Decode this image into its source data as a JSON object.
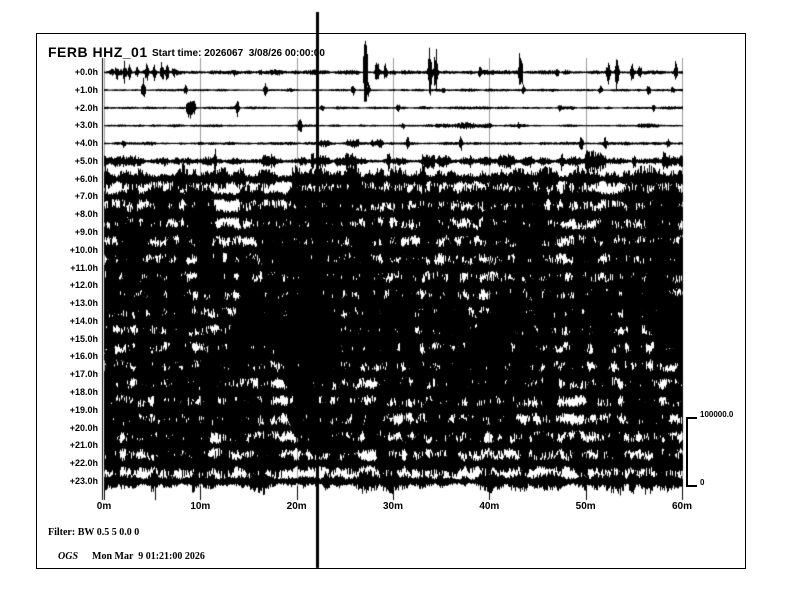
{
  "header": {
    "station": "FERB HHZ_01",
    "start_time": "Start time: 2026067  3/08/26 00:00:00"
  },
  "y_axis": {
    "labels": [
      "+0.0h",
      "+1.0h",
      "+2.0h",
      "+3.0h",
      "+4.0h",
      "+5.0h",
      "+6.0h",
      "+7.0h",
      "+8.0h",
      "+9.0h",
      "+10.0h",
      "+11.0h",
      "+12.0h",
      "+13.0h",
      "+14.0h",
      "+15.0h",
      "+16.0h",
      "+17.0h",
      "+18.0h",
      "+19.0h",
      "+20.0h",
      "+21.0h",
      "+22.0h",
      "+23.0h"
    ]
  },
  "x_axis": {
    "labels": [
      "0m",
      "10m",
      "20m",
      "30m",
      "40m",
      "50m",
      "60m"
    ],
    "minutes": [
      0,
      10,
      20,
      30,
      40,
      50,
      60
    ]
  },
  "scale_bar": {
    "max_label": "100000.0",
    "min_label": "0"
  },
  "footer": {
    "filter": "Filter: BW 0.5 5 0.0 0",
    "agency": "OGS",
    "timestamp": "Mon Mar  9 01:21:00 2026"
  },
  "colors": {
    "trace": "#000000",
    "grid": "#9b9b9b",
    "background": "#ffffff",
    "text": "#000000"
  },
  "chart_data": {
    "type": "line",
    "subtype": "helicorder-seismogram",
    "title": "FERB HHZ_01",
    "start_time": "2026067 3/08/26 00:00:00",
    "x_range_minutes": [
      0,
      60
    ],
    "x_tick_minutes": [
      0,
      10,
      20,
      30,
      40,
      50,
      60
    ],
    "grid": true,
    "rows_per_day": 24,
    "amplitude_scale": {
      "max": 100000.0,
      "min": 0
    },
    "event_marker_minute": 22.1,
    "rows": [
      {
        "label": "+0.0h",
        "base": 1.6,
        "spikes": [
          [
            0.8,
            6
          ],
          [
            1.3,
            10
          ],
          [
            2.1,
            14
          ],
          [
            2.6,
            8
          ],
          [
            3.4,
            7
          ],
          [
            4.4,
            12
          ],
          [
            5.2,
            9
          ],
          [
            6.0,
            15
          ],
          [
            6.5,
            10
          ],
          [
            7.2,
            7
          ],
          [
            13.5,
            5
          ],
          [
            16.2,
            4
          ],
          [
            27.1,
            58
          ],
          [
            28.3,
            18
          ],
          [
            29.2,
            12
          ],
          [
            33.8,
            38
          ],
          [
            34.4,
            30
          ],
          [
            39.0,
            8
          ],
          [
            43.2,
            34
          ],
          [
            47.0,
            6
          ],
          [
            52.3,
            14
          ],
          [
            53.2,
            22
          ],
          [
            54.8,
            12
          ],
          [
            55.6,
            10
          ],
          [
            59.3,
            12
          ]
        ],
        "bursts": []
      },
      {
        "label": "+1.0h",
        "base": 0.9,
        "spikes": [
          [
            4.05,
            13
          ],
          [
            8.4,
            7
          ],
          [
            16.7,
            9
          ],
          [
            25.8,
            7
          ],
          [
            27.4,
            8
          ],
          [
            35.2,
            4
          ],
          [
            43.5,
            6
          ],
          [
            51.5,
            6
          ],
          [
            56.5,
            9
          ],
          [
            59.0,
            5
          ]
        ],
        "bursts": []
      },
      {
        "label": "+2.0h",
        "base": 0.8,
        "spikes": [
          [
            8.7,
            12
          ],
          [
            9.0,
            14
          ],
          [
            9.3,
            10
          ],
          [
            13.8,
            11
          ],
          [
            22.6,
            5
          ],
          [
            30.5,
            5
          ],
          [
            47.3,
            5
          ],
          [
            57.0,
            4
          ]
        ],
        "bursts": []
      },
      {
        "label": "+3.0h",
        "base": 0.8,
        "spikes": [
          [
            20.3,
            12
          ],
          [
            31.0,
            4
          ],
          [
            43.0,
            5
          ]
        ],
        "bursts": [
          [
            34.4,
            40.1,
            3
          ],
          [
            55.5,
            57.5,
            1.8
          ]
        ]
      },
      {
        "label": "+4.0h",
        "base": 1.1,
        "spikes": [
          [
            2.0,
            6
          ],
          [
            31.5,
            8
          ],
          [
            37.0,
            9
          ],
          [
            49.5,
            10
          ],
          [
            52.0,
            8
          ],
          [
            58.5,
            6
          ]
        ],
        "bursts": [
          [
            22.4,
            23.3,
            5.5
          ],
          [
            25.2,
            26.3,
            5.5
          ],
          [
            27.8,
            28.8,
            5.5
          ]
        ]
      },
      {
        "label": "+5.0h",
        "base": 3.2,
        "spikes": [
          [
            11.5,
            14
          ],
          [
            21.6,
            12
          ],
          [
            29.5,
            12
          ],
          [
            38.0,
            10
          ],
          [
            47.5,
            12
          ],
          [
            55.0,
            10
          ]
        ],
        "bursts": [
          [
            0,
            2,
            6
          ],
          [
            16.5,
            17.6,
            8
          ],
          [
            25,
            26,
            7
          ],
          [
            33,
            34.2,
            8
          ],
          [
            41,
            42.5,
            8
          ],
          [
            50,
            52,
            9
          ],
          [
            58,
            60,
            8
          ]
        ]
      },
      {
        "label": "+6.0h",
        "base": 9,
        "spikes": [],
        "bursts": [
          [
            19.5,
            24.5,
            12
          ]
        ]
      },
      {
        "label": "+7.0h",
        "base": 11,
        "spikes": [],
        "bursts": [
          [
            19.5,
            24.5,
            14
          ]
        ]
      },
      {
        "label": "+8.0h",
        "base": 13,
        "spikes": [],
        "bursts": [
          [
            16.5,
            18.2,
            15
          ],
          [
            19,
            25,
            17
          ]
        ]
      },
      {
        "label": "+9.0h",
        "base": 14.5,
        "spikes": [],
        "bursts": [
          [
            19,
            25,
            18
          ]
        ]
      },
      {
        "label": "+10.0h",
        "base": 15.5,
        "spikes": [],
        "bursts": [
          [
            16.5,
            18.2,
            18
          ],
          [
            19.5,
            24.5,
            19
          ]
        ]
      },
      {
        "label": "+11.0h",
        "base": 16,
        "spikes": [],
        "bursts": [
          [
            19.5,
            24.5,
            20
          ]
        ]
      },
      {
        "label": "+12.0h",
        "base": 16.5,
        "spikes": [],
        "bursts": [
          [
            16.5,
            18.2,
            19
          ],
          [
            19.5,
            24.5,
            20
          ]
        ]
      },
      {
        "label": "+13.0h",
        "base": 17,
        "spikes": [],
        "bursts": [
          [
            19.5,
            24.5,
            21
          ],
          [
            48.8,
            50,
            20
          ]
        ]
      },
      {
        "label": "+14.0h",
        "base": 17,
        "spikes": [],
        "bursts": [
          [
            16.5,
            18.2,
            19
          ],
          [
            19.5,
            24.5,
            21
          ]
        ]
      },
      {
        "label": "+15.0h",
        "base": 16.5,
        "spikes": [],
        "bursts": [
          [
            19.5,
            24.5,
            20
          ],
          [
            48.8,
            50,
            19
          ]
        ]
      },
      {
        "label": "+16.0h",
        "base": 16,
        "spikes": [],
        "bursts": [
          [
            19.5,
            24.5,
            19
          ]
        ]
      },
      {
        "label": "+17.0h",
        "base": 15.5,
        "spikes": [],
        "bursts": [
          [
            19.5,
            24.5,
            18
          ]
        ]
      },
      {
        "label": "+18.0h",
        "base": 14.5,
        "spikes": [],
        "bursts": []
      },
      {
        "label": "+19.0h",
        "base": 14,
        "spikes": [],
        "bursts": []
      },
      {
        "label": "+20.0h",
        "base": 13.5,
        "spikes": [],
        "bursts": []
      },
      {
        "label": "+21.0h",
        "base": 12.5,
        "spikes": [],
        "bursts": []
      },
      {
        "label": "+22.0h",
        "base": 11.5,
        "spikes": [],
        "bursts": [
          [
            0.3,
            1.3,
            16
          ],
          [
            58.8,
            59.9,
            16
          ]
        ]
      },
      {
        "label": "+23.0h",
        "base": 9.5,
        "spikes": [
          [
            5.3,
            20
          ]
        ],
        "bursts": []
      }
    ]
  }
}
